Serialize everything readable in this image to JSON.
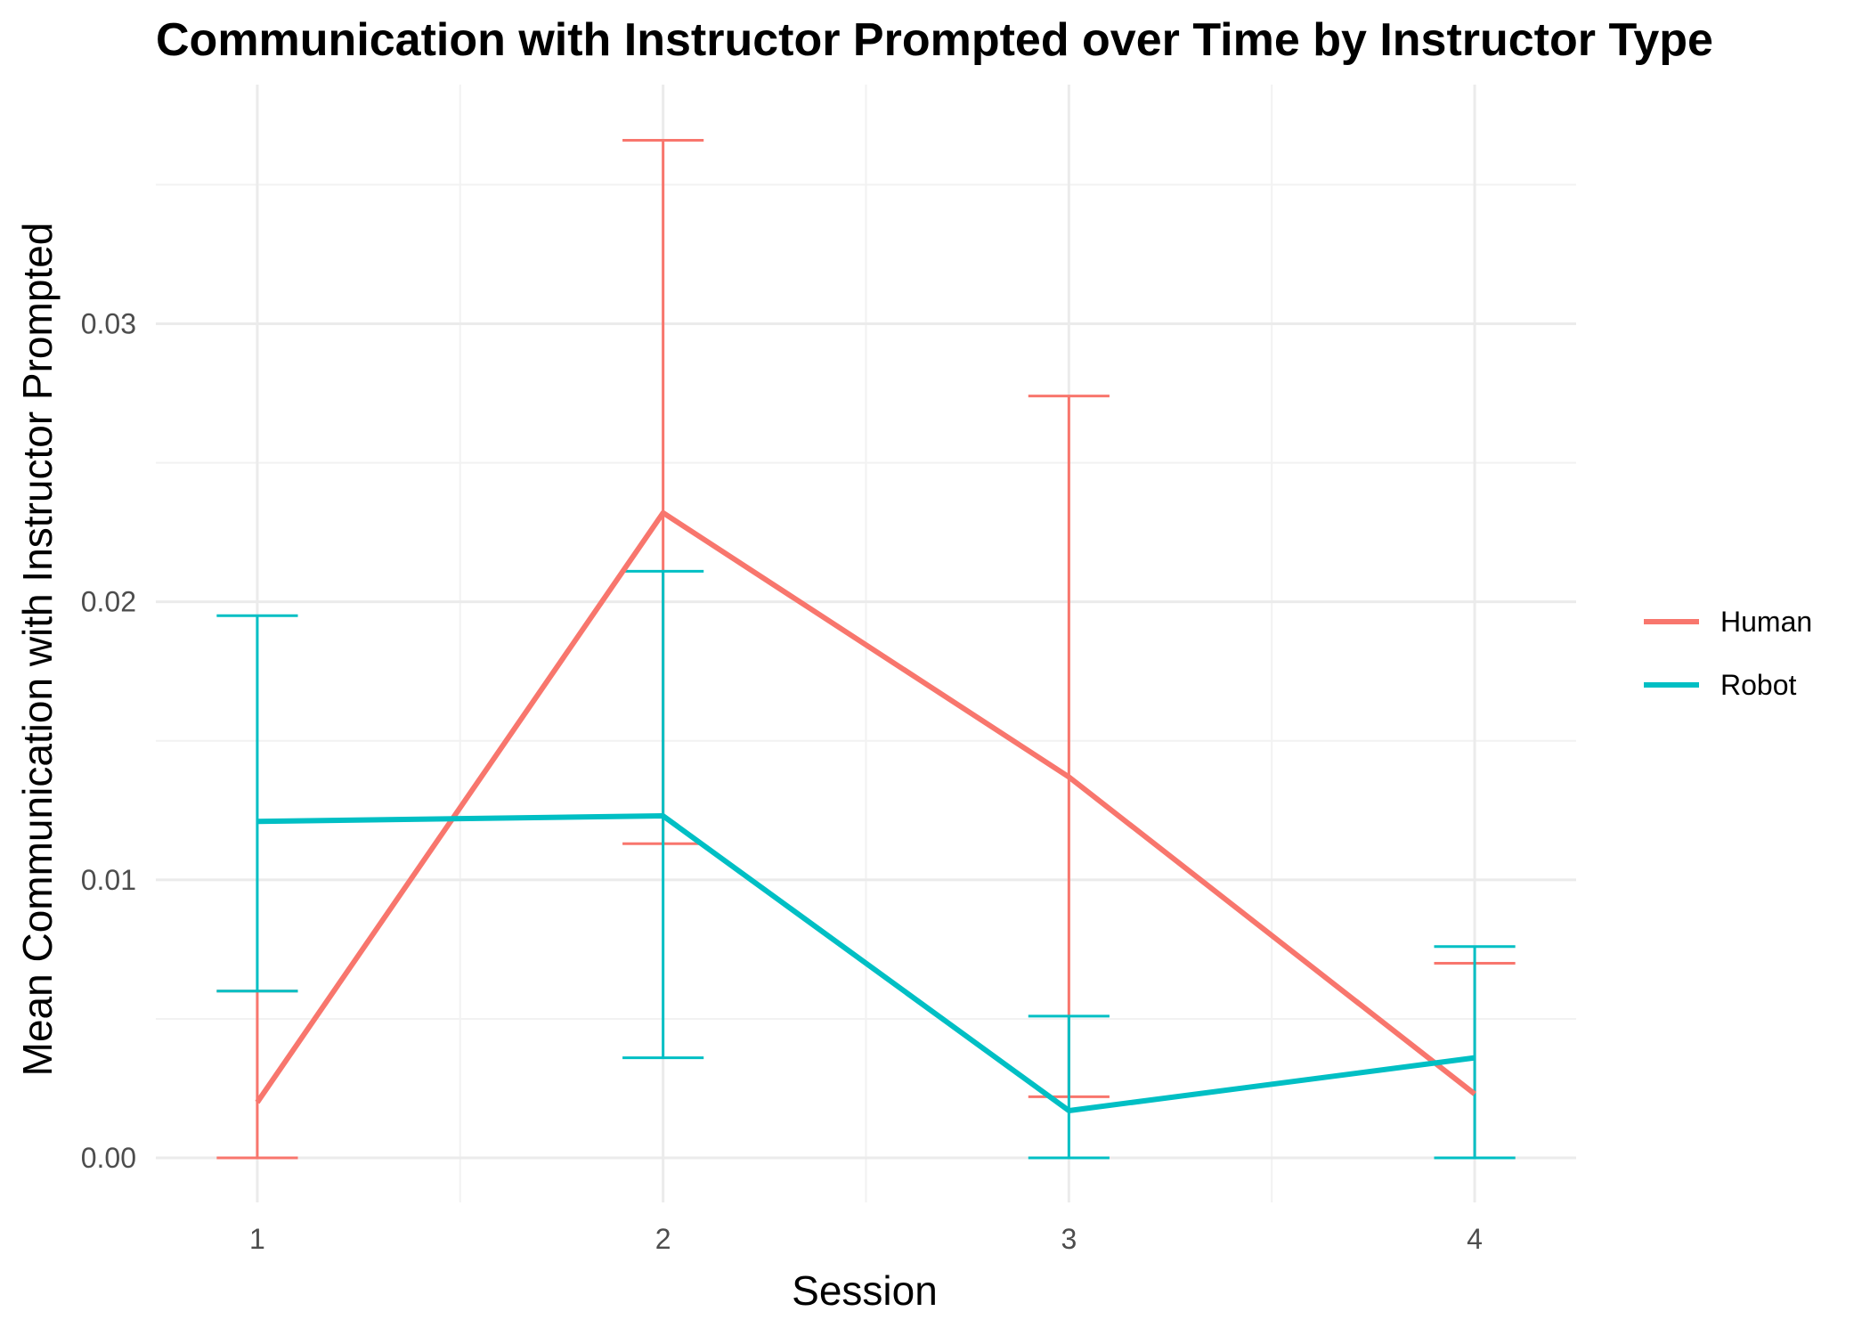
{
  "chart_data": {
    "type": "line",
    "title": "Communication with Instructor Prompted over Time by Instructor Type",
    "xlabel": "Session",
    "ylabel": "Mean Communication with Instructor Prompted",
    "x": [
      1,
      2,
      3,
      4
    ],
    "x_tick_labels": [
      "1",
      "2",
      "3",
      "4"
    ],
    "y_ticks": [
      0.0,
      0.01,
      0.02,
      0.03
    ],
    "y_tick_labels": [
      "0.00",
      "0.01",
      "0.02",
      "0.03"
    ],
    "xlim": [
      0.75,
      4.25
    ],
    "ylim": [
      -0.0016,
      0.0386
    ],
    "grid": true,
    "legend_position": "right",
    "series": [
      {
        "name": "Human",
        "color": "#F8766D",
        "values": [
          0.002,
          0.0232,
          0.0137,
          0.0023
        ],
        "error_lower": [
          0.0,
          0.0113,
          0.0022,
          0.0
        ],
        "error_upper": [
          0.006,
          0.0366,
          0.0274,
          0.007
        ]
      },
      {
        "name": "Robot",
        "color": "#00BFC4",
        "values": [
          0.0121,
          0.0123,
          0.0017,
          0.0036
        ],
        "error_lower": [
          0.006,
          0.0036,
          0.0,
          0.0
        ],
        "error_upper": [
          0.0195,
          0.0211,
          0.0051,
          0.0076
        ]
      }
    ]
  }
}
